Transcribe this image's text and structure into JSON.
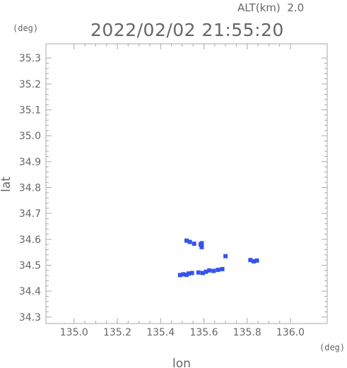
{
  "header": {
    "alt_label": "ALT(km)  2.0",
    "timestamp": "2022/02/02 21:55:20"
  },
  "chart_data": {
    "type": "scatter",
    "title": "2022/02/02 21:55:20",
    "xlabel": "lon",
    "ylabel": "lat",
    "x_unit": "(deg)",
    "y_unit": "(deg)",
    "xlim": [
      134.87,
      136.17
    ],
    "ylim": [
      34.275,
      35.355
    ],
    "x_ticks": [
      135.0,
      135.2,
      135.4,
      135.6,
      135.8,
      136.0
    ],
    "y_ticks": [
      34.3,
      34.4,
      34.5,
      34.6,
      34.7,
      34.8,
      34.9,
      35.0,
      35.1,
      35.2,
      35.3
    ],
    "marker_color": "#3355ee",
    "series": [
      {
        "values": [
          {
            "lon": 135.52,
            "lat": 34.595
          },
          {
            "lon": 135.535,
            "lat": 34.59
          },
          {
            "lon": 135.555,
            "lat": 34.583
          },
          {
            "lon": 135.585,
            "lat": 34.58
          },
          {
            "lon": 135.59,
            "lat": 34.57
          },
          {
            "lon": 135.59,
            "lat": 34.585
          },
          {
            "lon": 135.7,
            "lat": 34.535
          },
          {
            "lon": 135.815,
            "lat": 34.52
          },
          {
            "lon": 135.83,
            "lat": 34.515
          },
          {
            "lon": 135.845,
            "lat": 34.518
          },
          {
            "lon": 135.49,
            "lat": 34.462
          },
          {
            "lon": 135.505,
            "lat": 34.465
          },
          {
            "lon": 135.52,
            "lat": 34.463
          },
          {
            "lon": 135.53,
            "lat": 34.468
          },
          {
            "lon": 135.545,
            "lat": 34.47
          },
          {
            "lon": 135.575,
            "lat": 34.472
          },
          {
            "lon": 135.595,
            "lat": 34.47
          },
          {
            "lon": 135.61,
            "lat": 34.475
          },
          {
            "lon": 135.625,
            "lat": 34.48
          },
          {
            "lon": 135.645,
            "lat": 34.478
          },
          {
            "lon": 135.665,
            "lat": 34.482
          },
          {
            "lon": 135.685,
            "lat": 34.485
          }
        ]
      }
    ]
  }
}
